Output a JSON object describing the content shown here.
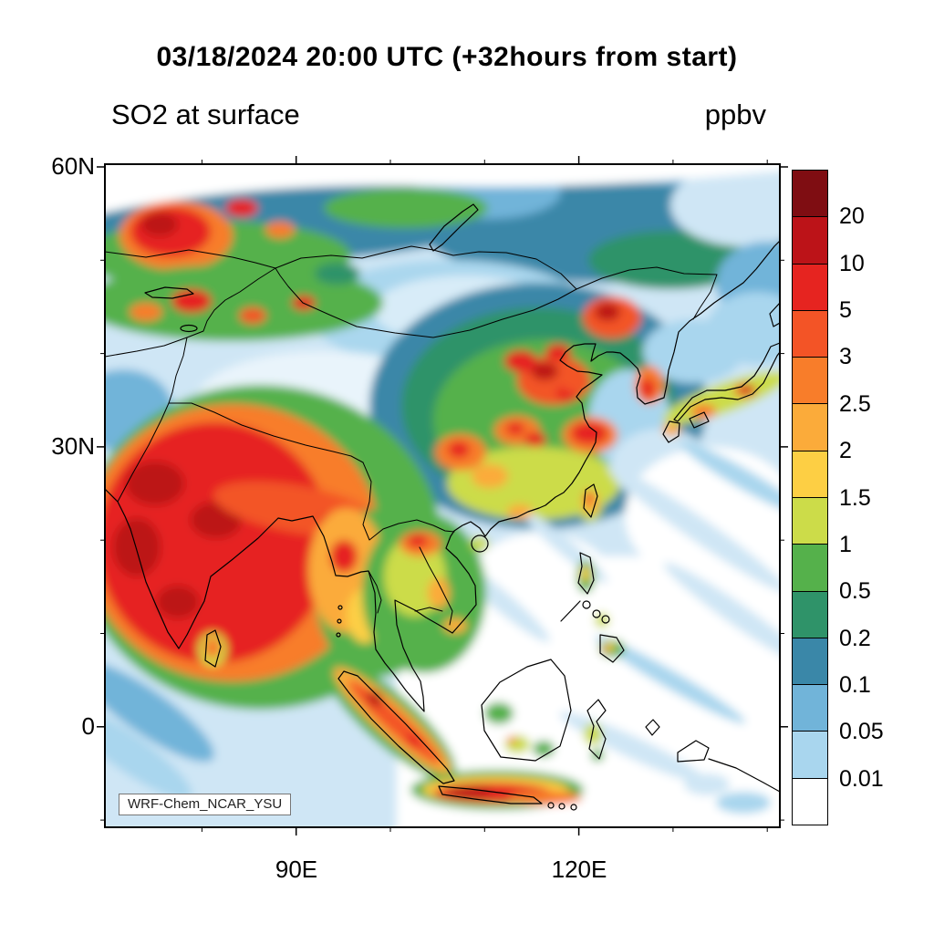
{
  "header": {
    "title": "03/18/2024 20:00 UTC (+32hours from start)",
    "variable_label": "SO2 at surface",
    "units_label": "ppbv"
  },
  "axes": {
    "y_ticks": [
      "60N",
      "30N",
      "0"
    ],
    "x_ticks": [
      "90E",
      "120E"
    ]
  },
  "map": {
    "watermark": "WRF-Chem_NCAR_YSU"
  },
  "colorbar": {
    "tick_labels": [
      "20",
      "10",
      "5",
      "3",
      "2.5",
      "2",
      "1.5",
      "1",
      "0.5",
      "0.2",
      "0.1",
      "0.05",
      "0.01"
    ],
    "cell_colors_top_to_bottom": [
      "#7f0d12",
      "#bc1318",
      "#e62420",
      "#f35426",
      "#f87d2a",
      "#fbab3a",
      "#fdcf44",
      "#ccdc49",
      "#55b14b",
      "#2f9369",
      "#3a87a8",
      "#71b4d9",
      "#a9d6ee",
      "#ffffff"
    ]
  },
  "chart_data": {
    "type": "heatmap",
    "title": "03/18/2024 20:00 UTC (+32hours from start)",
    "variable": "SO2 at surface",
    "units": "ppbv",
    "x_tick_labels": [
      "90E",
      "120E"
    ],
    "y_tick_labels": [
      "60N",
      "30N",
      "0"
    ],
    "contour_levels_ppbv": [
      0.01,
      0.05,
      0.1,
      0.2,
      0.5,
      1,
      1.5,
      2,
      2.5,
      3,
      5,
      10,
      20
    ],
    "palette_high_to_low": [
      "#7f0d12",
      "#bc1318",
      "#e62420",
      "#f35426",
      "#f87d2a",
      "#fbab3a",
      "#fdcf44",
      "#ccdc49",
      "#55b14b",
      "#2f9369",
      "#3a87a8",
      "#71b4d9",
      "#a9d6ee",
      "#ffffff"
    ],
    "model_label": "WRF-Chem_NCAR_YSU",
    "high_value_regions": [
      "Northern India and Indo-Gangetic plain (5-20+ ppbv)",
      "Eastern China industrial belt (3-10 ppbv patches)",
      "Southeastern Kazakhstan / Altai area (5-20 ppbv spots)",
      "Java, Indonesia (5-10 ppbv plume)",
      "Korea and central Japan spots (2.5-5 ppbv)",
      "Northern Vietnam and Sumatra spots (3-5 ppbv)"
    ],
    "low_value_regions": [
      "Open Pacific and Indian Ocean (below 0.05 ppbv)",
      "South China Sea and Philippine Sea (below 0.01-0.1 ppbv)"
    ]
  }
}
